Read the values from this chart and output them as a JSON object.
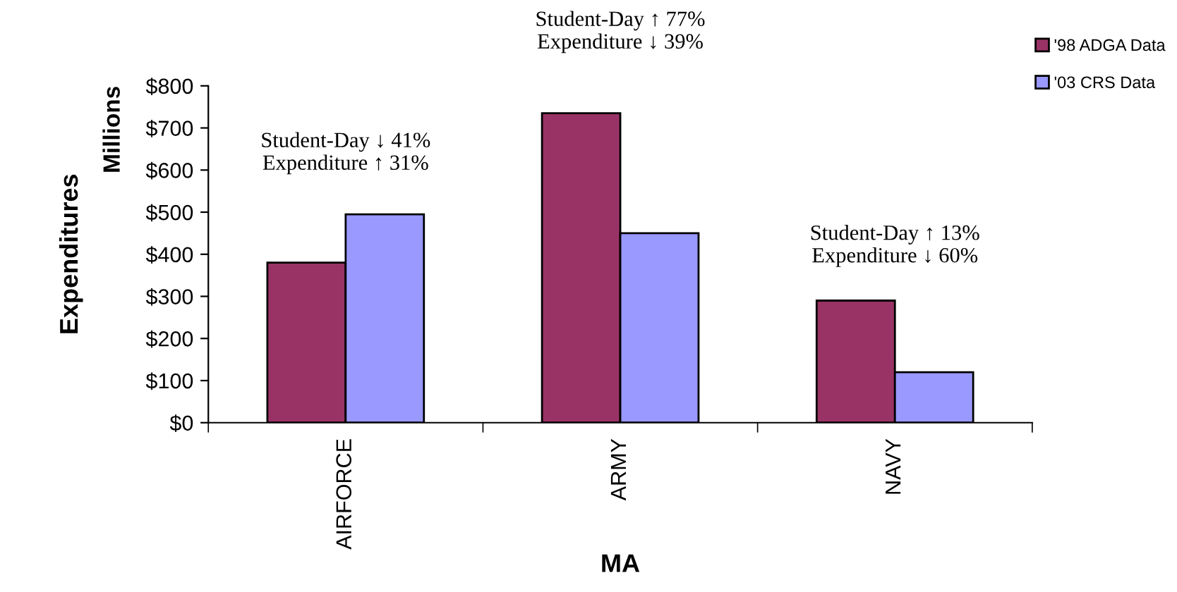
{
  "chart_data": {
    "type": "bar",
    "xlabel": "MA",
    "ylabel": "Expenditures",
    "categories": [
      "AIRFORCE",
      "ARMY",
      "NAVY"
    ],
    "series": [
      {
        "name": "'98 ADGA Data",
        "color": "#993366",
        "values": [
          380,
          735,
          290
        ]
      },
      {
        "name": "'03 CRS Data",
        "color": "#9999ff",
        "values": [
          495,
          450,
          120
        ]
      }
    ],
    "ylim": [
      0,
      800
    ],
    "yticks": [
      {
        "value": 0,
        "label": "$0"
      },
      {
        "value": 100,
        "label": "$100"
      },
      {
        "value": 200,
        "label": "$200"
      },
      {
        "value": 300,
        "label": "$300"
      },
      {
        "value": 400,
        "label": "$400"
      },
      {
        "value": 500,
        "label": "$500"
      },
      {
        "value": 600,
        "label": "$600"
      },
      {
        "value": 700,
        "label": "$700"
      },
      {
        "value": 800,
        "label": "$800"
      }
    ],
    "annotations": [
      "Millions",
      "Student-Day ↓ 41%\nExpenditure ↑ 31%",
      "Student-Day ↑ 77%\nExpenditure ↓ 39%",
      "Student-Day ↑ 13%\nExpenditure ↓ 60%"
    ],
    "grid": false,
    "legend": "top right"
  }
}
